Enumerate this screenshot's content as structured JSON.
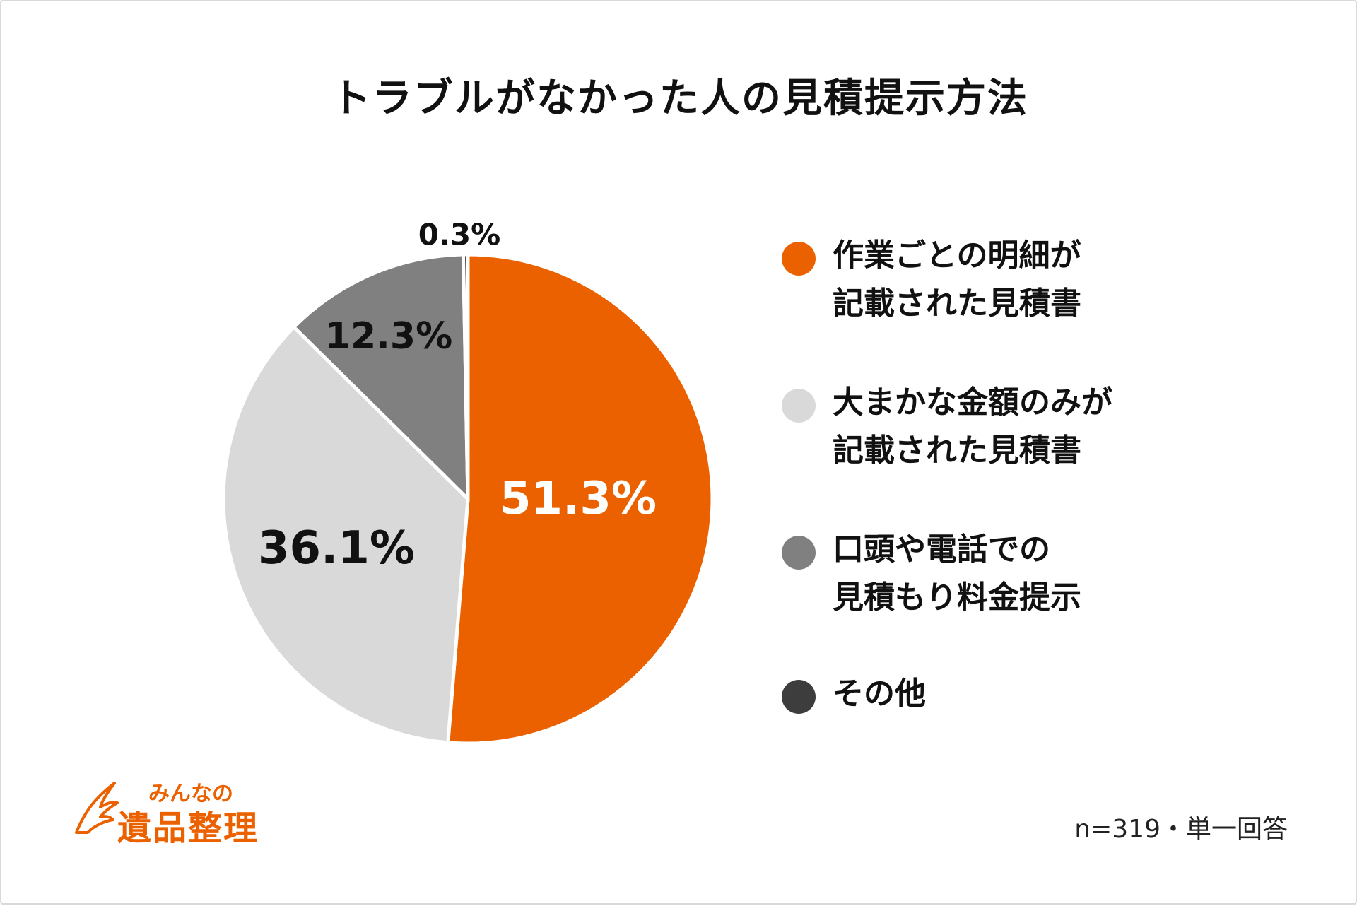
{
  "chart_data": {
    "type": "pie",
    "title": "トラブルがなかった人の見積提示方法",
    "slices": [
      {
        "label": "作業ごとの明細が\n記載された見積書",
        "value": 51.3,
        "display": "51.3%",
        "color": "#eb6100",
        "label_color": "#ffffff"
      },
      {
        "label": "大まかな金額のみが\n記載された見積書",
        "value": 36.1,
        "display": "36.1%",
        "color": "#d9d9d9",
        "label_color": "#111111"
      },
      {
        "label": "口頭や電話での\n見積もり料金提示",
        "value": 12.3,
        "display": "12.3%",
        "color": "#808080",
        "label_color": "#111111"
      },
      {
        "label": "その他",
        "value": 0.3,
        "display": "0.3%",
        "color": "#3d3d3d",
        "label_color": "#111111"
      }
    ],
    "legend_position": "right",
    "start": "top, clockwise",
    "note": "n=319・単一回答"
  },
  "logo": {
    "kana": "みんなの",
    "main": "遺品整理",
    "color": "#eb6100"
  }
}
